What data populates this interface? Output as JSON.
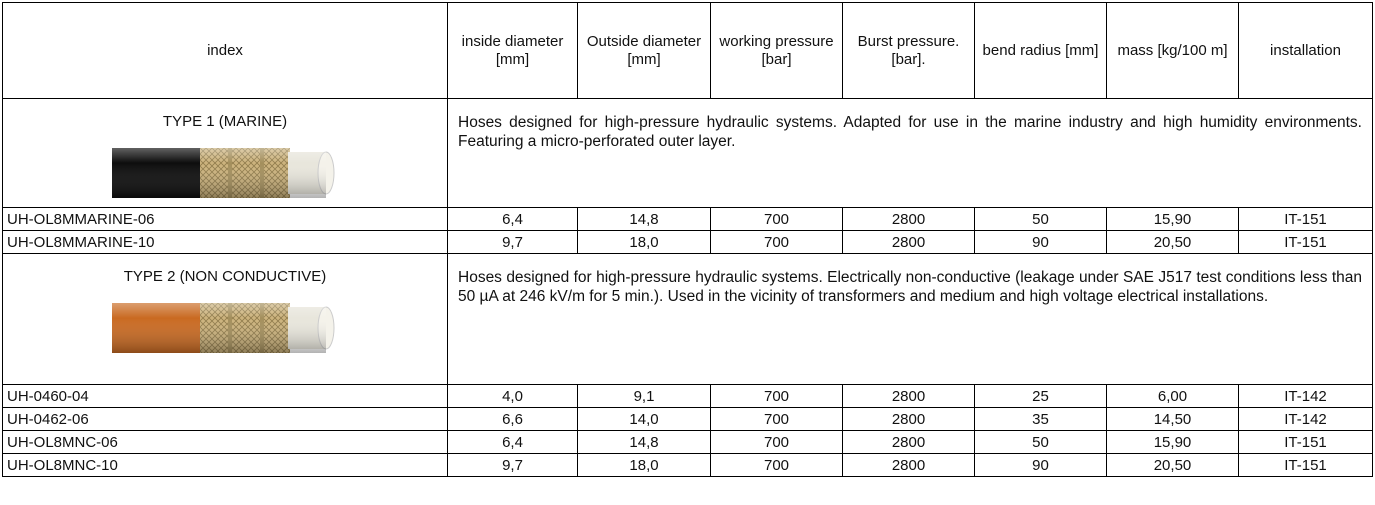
{
  "table": {
    "header": [
      "index",
      "inside diameter [mm]",
      "Outside diameter [mm]",
      "working pressure [bar]",
      "Burst pressure. [bar].",
      "bend radius [mm]",
      "mass [kg/100 m]",
      "installation"
    ],
    "sections": [
      {
        "title": "TYPE 1 (MARINE)",
        "description": "Hoses designed for high-pressure hydraulic systems. Adapted for use in the marine industry and high humidity environments. Featuring a micro-perforated outer layer.",
        "rows": [
          [
            "UH-OL8MMARINE-06",
            "6,4",
            "14,8",
            "700",
            "2800",
            "50",
            "15,90",
            "IT-151"
          ],
          [
            "UH-OL8MMARINE-10",
            "9,7",
            "18,0",
            "700",
            "2800",
            "90",
            "20,50",
            "IT-151"
          ]
        ]
      },
      {
        "title": "TYPE 2 (NON CONDUCTIVE)",
        "description": "Hoses designed for high-pressure hydraulic systems. Electrically non-conductive (leakage under SAE J517 test conditions less than 50 µA at 246 kV/m for 5 min.). Used in the vicinity of transformers and medium and high voltage electrical installations.",
        "rows": [
          [
            "UH-0460-04",
            "4,0",
            "9,1",
            "700",
            "2800",
            "25",
            "6,00",
            "IT-142"
          ],
          [
            "UH-0462-06",
            "6,6",
            "14,0",
            "700",
            "2800",
            "35",
            "14,50",
            "IT-142"
          ],
          [
            "UH-OL8MNC-06",
            "6,4",
            "14,8",
            "700",
            "2800",
            "50",
            "15,90",
            "IT-151"
          ],
          [
            "UH-OL8MNC-10",
            "9,7",
            "18,0",
            "700",
            "2800",
            "90",
            "20,50",
            "IT-151"
          ]
        ]
      }
    ]
  }
}
